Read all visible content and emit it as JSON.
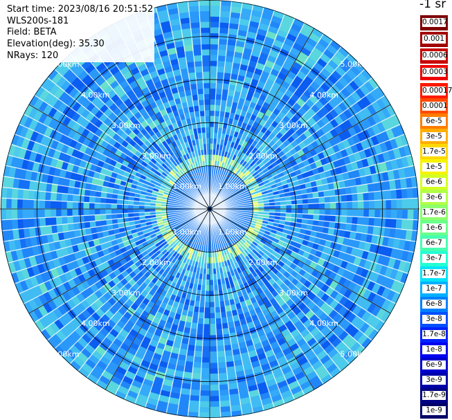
{
  "header": {
    "start_time": "Start time: 2023/08/16 20:51:52",
    "device": "WLS200s-181",
    "field": "Field: BETA",
    "elevation": "Elevation(deg): 35.30",
    "nrays": "NRays: 120"
  },
  "colorbar": {
    "unit": "-1 sr",
    "upper_labels": [
      "0.0017",
      "0.001",
      "0.0006",
      "0.0003"
    ],
    "labels": [
      "0.00017",
      "0.0001",
      "6e-5",
      "3e-5",
      "1.7e-5",
      "1e-5",
      "6e-6",
      "3e-6",
      "1.7e-6",
      "1e-6",
      "6e-7",
      "3e-7",
      "1.7e-7",
      "1e-7",
      "6e-8",
      "3e-8",
      "1.7e-8",
      "1e-8",
      "6e-9",
      "3e-9",
      "1.7e-9",
      "1e-9"
    ],
    "upper_colors": [
      "#7f0000",
      "#a20000",
      "#c80000",
      "#ee0000"
    ],
    "colors": [
      "#ff1a00",
      "#ff4a00",
      "#ff7d00",
      "#ffae00",
      "#ffd800",
      "#f7f300",
      "#d4ff23",
      "#b1ff46",
      "#8cff6b",
      "#6bff8c",
      "#46ffb1",
      "#23ffd4",
      "#00e4f8",
      "#00b0ff",
      "#0080ff",
      "#0050ff",
      "#0020ff",
      "#0000f1",
      "#0000cd",
      "#0000a8",
      "#000084",
      "#000068"
    ]
  },
  "polar": {
    "ring_labels": [
      "1.00km",
      "2.00km",
      "3.00km",
      "4.00km",
      "5.00km"
    ],
    "rays": 120,
    "field_colors": [
      "#0b5cf0",
      "#1670f5",
      "#2186f8",
      "#2a98f9",
      "#35aaf8",
      "#40bcf3",
      "#4ccbea",
      "#5ad6de",
      "#6be0c8",
      "#8ae8a8",
      "#b6f08a",
      "#e4f66a"
    ]
  }
}
